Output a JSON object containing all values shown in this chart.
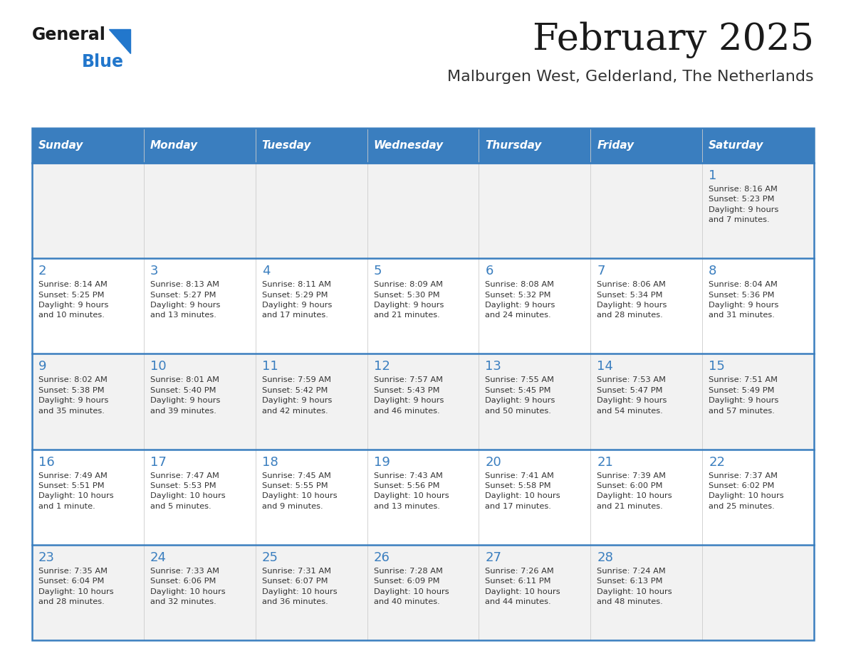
{
  "title": "February 2025",
  "subtitle": "Malburgen West, Gelderland, The Netherlands",
  "days_of_week": [
    "Sunday",
    "Monday",
    "Tuesday",
    "Wednesday",
    "Thursday",
    "Friday",
    "Saturday"
  ],
  "header_bg": "#3a7ebf",
  "header_text_color": "#ffffff",
  "row_bg_odd": "#f2f2f2",
  "row_bg_even": "#ffffff",
  "border_color": "#3a7ebf",
  "title_color": "#1a1a1a",
  "subtitle_color": "#333333",
  "day_num_color": "#3a7ebf",
  "cell_text_color": "#333333",
  "logo_general_color": "#1a1a1a",
  "logo_blue_color": "#2277cc",
  "cell_line_color": "#aaaaaa",
  "weeks": [
    {
      "days": [
        {
          "date": null,
          "info": null
        },
        {
          "date": null,
          "info": null
        },
        {
          "date": null,
          "info": null
        },
        {
          "date": null,
          "info": null
        },
        {
          "date": null,
          "info": null
        },
        {
          "date": null,
          "info": null
        },
        {
          "date": 1,
          "info": "Sunrise: 8:16 AM\nSunset: 5:23 PM\nDaylight: 9 hours\nand 7 minutes."
        }
      ]
    },
    {
      "days": [
        {
          "date": 2,
          "info": "Sunrise: 8:14 AM\nSunset: 5:25 PM\nDaylight: 9 hours\nand 10 minutes."
        },
        {
          "date": 3,
          "info": "Sunrise: 8:13 AM\nSunset: 5:27 PM\nDaylight: 9 hours\nand 13 minutes."
        },
        {
          "date": 4,
          "info": "Sunrise: 8:11 AM\nSunset: 5:29 PM\nDaylight: 9 hours\nand 17 minutes."
        },
        {
          "date": 5,
          "info": "Sunrise: 8:09 AM\nSunset: 5:30 PM\nDaylight: 9 hours\nand 21 minutes."
        },
        {
          "date": 6,
          "info": "Sunrise: 8:08 AM\nSunset: 5:32 PM\nDaylight: 9 hours\nand 24 minutes."
        },
        {
          "date": 7,
          "info": "Sunrise: 8:06 AM\nSunset: 5:34 PM\nDaylight: 9 hours\nand 28 minutes."
        },
        {
          "date": 8,
          "info": "Sunrise: 8:04 AM\nSunset: 5:36 PM\nDaylight: 9 hours\nand 31 minutes."
        }
      ]
    },
    {
      "days": [
        {
          "date": 9,
          "info": "Sunrise: 8:02 AM\nSunset: 5:38 PM\nDaylight: 9 hours\nand 35 minutes."
        },
        {
          "date": 10,
          "info": "Sunrise: 8:01 AM\nSunset: 5:40 PM\nDaylight: 9 hours\nand 39 minutes."
        },
        {
          "date": 11,
          "info": "Sunrise: 7:59 AM\nSunset: 5:42 PM\nDaylight: 9 hours\nand 42 minutes."
        },
        {
          "date": 12,
          "info": "Sunrise: 7:57 AM\nSunset: 5:43 PM\nDaylight: 9 hours\nand 46 minutes."
        },
        {
          "date": 13,
          "info": "Sunrise: 7:55 AM\nSunset: 5:45 PM\nDaylight: 9 hours\nand 50 minutes."
        },
        {
          "date": 14,
          "info": "Sunrise: 7:53 AM\nSunset: 5:47 PM\nDaylight: 9 hours\nand 54 minutes."
        },
        {
          "date": 15,
          "info": "Sunrise: 7:51 AM\nSunset: 5:49 PM\nDaylight: 9 hours\nand 57 minutes."
        }
      ]
    },
    {
      "days": [
        {
          "date": 16,
          "info": "Sunrise: 7:49 AM\nSunset: 5:51 PM\nDaylight: 10 hours\nand 1 minute."
        },
        {
          "date": 17,
          "info": "Sunrise: 7:47 AM\nSunset: 5:53 PM\nDaylight: 10 hours\nand 5 minutes."
        },
        {
          "date": 18,
          "info": "Sunrise: 7:45 AM\nSunset: 5:55 PM\nDaylight: 10 hours\nand 9 minutes."
        },
        {
          "date": 19,
          "info": "Sunrise: 7:43 AM\nSunset: 5:56 PM\nDaylight: 10 hours\nand 13 minutes."
        },
        {
          "date": 20,
          "info": "Sunrise: 7:41 AM\nSunset: 5:58 PM\nDaylight: 10 hours\nand 17 minutes."
        },
        {
          "date": 21,
          "info": "Sunrise: 7:39 AM\nSunset: 6:00 PM\nDaylight: 10 hours\nand 21 minutes."
        },
        {
          "date": 22,
          "info": "Sunrise: 7:37 AM\nSunset: 6:02 PM\nDaylight: 10 hours\nand 25 minutes."
        }
      ]
    },
    {
      "days": [
        {
          "date": 23,
          "info": "Sunrise: 7:35 AM\nSunset: 6:04 PM\nDaylight: 10 hours\nand 28 minutes."
        },
        {
          "date": 24,
          "info": "Sunrise: 7:33 AM\nSunset: 6:06 PM\nDaylight: 10 hours\nand 32 minutes."
        },
        {
          "date": 25,
          "info": "Sunrise: 7:31 AM\nSunset: 6:07 PM\nDaylight: 10 hours\nand 36 minutes."
        },
        {
          "date": 26,
          "info": "Sunrise: 7:28 AM\nSunset: 6:09 PM\nDaylight: 10 hours\nand 40 minutes."
        },
        {
          "date": 27,
          "info": "Sunrise: 7:26 AM\nSunset: 6:11 PM\nDaylight: 10 hours\nand 44 minutes."
        },
        {
          "date": 28,
          "info": "Sunrise: 7:24 AM\nSunset: 6:13 PM\nDaylight: 10 hours\nand 48 minutes."
        },
        {
          "date": null,
          "info": null
        }
      ]
    }
  ]
}
